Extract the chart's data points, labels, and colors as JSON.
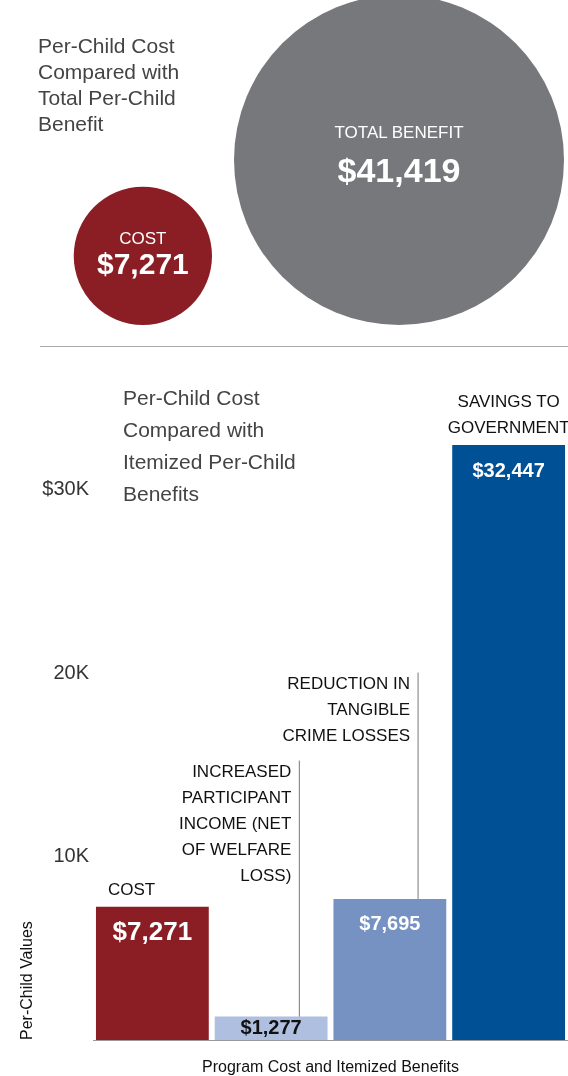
{
  "chart_data": [
    {
      "type": "other",
      "title": "Per-Child Cost Compared with Total Per-Child Benefit",
      "categories": [
        "COST",
        "TOTAL BENEFIT"
      ],
      "values": [
        7271,
        41419
      ],
      "value_labels": [
        "$7,271",
        "$41,419"
      ],
      "colors": [
        "#8b1e24",
        "#77787b"
      ]
    },
    {
      "type": "bar",
      "title": "Per-Child Cost Compared with Itemized Per-Child Benefits",
      "xlabel": "Program Cost and Itemized Benefits",
      "ylabel": "Per-Child Values",
      "categories": [
        null,
        null,
        null,
        null
      ],
      "annotations": [
        "COST",
        "INCREASED PARTICIPANT INCOME (NET OF WELFARE LOSS)",
        "REDUCTION IN TANGIBLE CRIME LOSSES",
        "SAVINGS TO GOVERNMENT"
      ],
      "values": [
        7271,
        1277,
        7695,
        32447
      ],
      "ylim": [
        0,
        32447
      ],
      "value_labels": [
        "$7,271",
        "$1,277",
        "$7,695",
        "$32,447"
      ],
      "colors": [
        "#8b1e24",
        "#aebfdf",
        "#7692c2",
        "#005096"
      ],
      "yticks": [
        {
          "value": 10000,
          "label": "10K"
        },
        {
          "value": 20000,
          "label": "20K"
        },
        {
          "value": 30000,
          "label": "$30K"
        }
      ],
      "grid": false
    }
  ]
}
